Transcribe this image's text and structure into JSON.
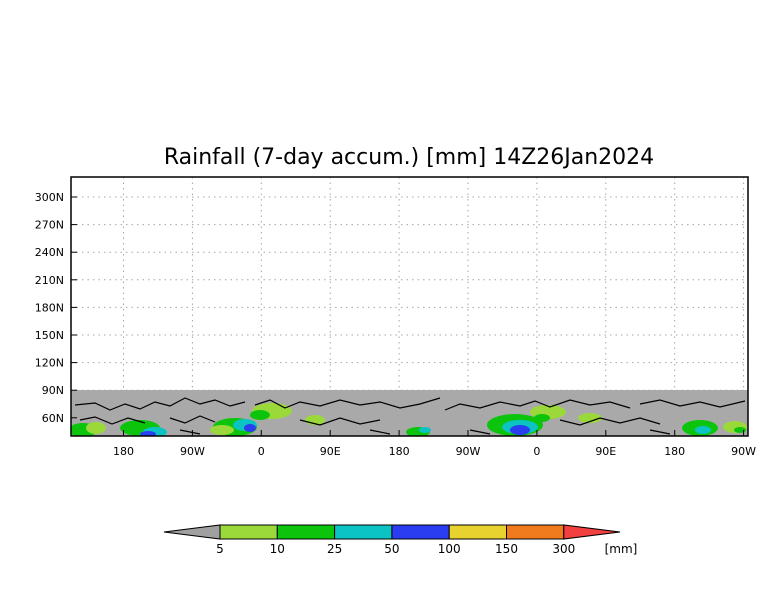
{
  "chart_data": {
    "type": "heatmap",
    "title": "Rainfall (7-day accum.) [mm] 14Z26Jan2024",
    "y_tick_labels": [
      "300N",
      "270N",
      "240N",
      "210N",
      "180N",
      "150N",
      "120N",
      "90N",
      "60N"
    ],
    "x_tick_labels": [
      "180",
      "90W",
      "0",
      "90E",
      "180",
      "90W",
      "0",
      "90E",
      "180",
      "90W"
    ],
    "grid": true,
    "colorbar": {
      "unit": "[mm]",
      "levels": [
        "5",
        "10",
        "25",
        "50",
        "100",
        "150",
        "300"
      ],
      "colors": [
        "#a0a0a0",
        "#9bd93b",
        "#0cc40c",
        "#0cc3c3",
        "#2b3df0",
        "#e8d230",
        "#f07a1e",
        "#f24040"
      ]
    },
    "colors": {
      "missing": "#a9a9a9",
      "coastline": "#000000",
      "grid": "#a6a6a6"
    }
  }
}
